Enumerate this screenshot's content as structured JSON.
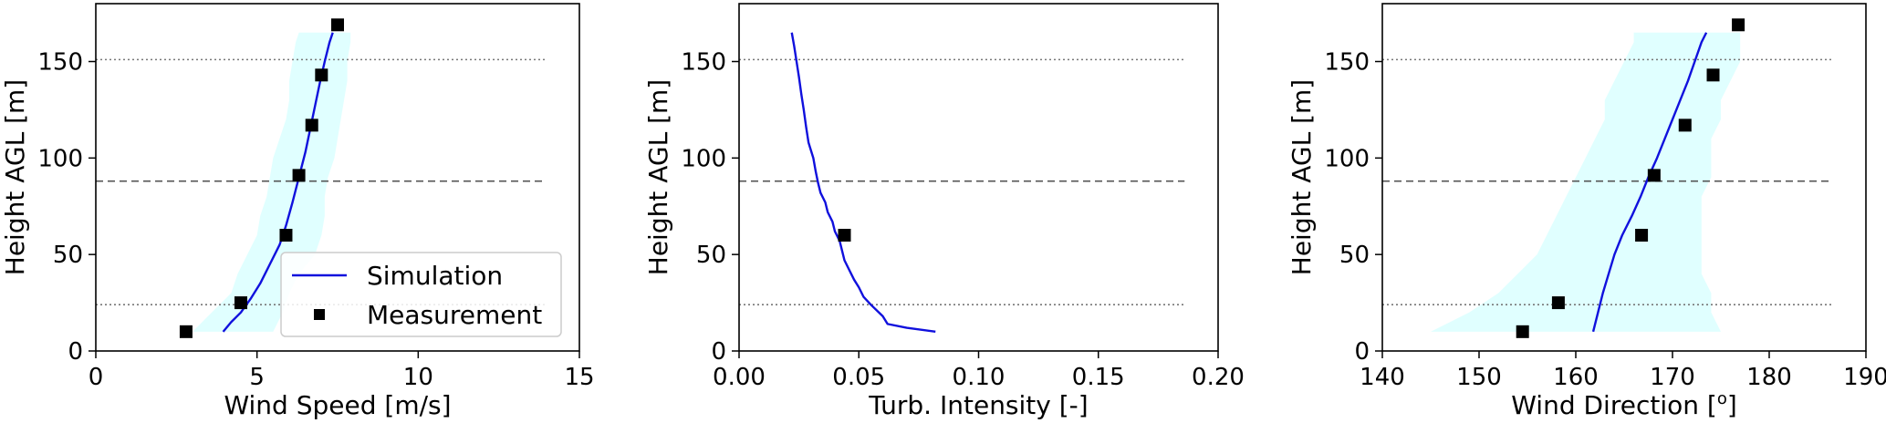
{
  "chart_data": [
    {
      "type": "line",
      "xlabel": "Wind Speed [m/s]",
      "ylabel": "Height AGL [m]",
      "xlim": [
        0,
        15
      ],
      "ylim": [
        0,
        180
      ],
      "xticks": [
        "0",
        "5",
        "10",
        "15"
      ],
      "yticks": [
        "0",
        "50",
        "100",
        "150"
      ],
      "hlines": [
        {
          "y": 151,
          "style": "dotted"
        },
        {
          "y": 88,
          "style": "dashed"
        },
        {
          "y": 24,
          "style": "dotted"
        }
      ],
      "band": {
        "color": "#e0ffff",
        "y": [
          10,
          20,
          30,
          40,
          50,
          60,
          70,
          80,
          90,
          100,
          110,
          120,
          130,
          140,
          150,
          160,
          165
        ],
        "lower": [
          3.0,
          3.6,
          4.2,
          4.4,
          4.7,
          5.0,
          5.1,
          5.3,
          5.4,
          5.5,
          5.7,
          5.9,
          6.0,
          6.0,
          6.1,
          6.2,
          6.3
        ],
        "upper": [
          5.5,
          5.8,
          6.0,
          6.3,
          6.8,
          7.0,
          7.1,
          7.1,
          7.2,
          7.4,
          7.5,
          7.6,
          7.7,
          7.8,
          7.8,
          7.9,
          7.9
        ]
      },
      "series": [
        {
          "name": "Simulation",
          "color": "#1010dd",
          "kind": "line",
          "x": [
            3.95,
            4.2,
            4.5,
            4.8,
            5.1,
            5.4,
            5.7,
            5.9,
            6.1,
            6.3,
            6.5,
            6.65,
            6.8,
            6.95,
            7.1,
            7.25,
            7.35
          ],
          "y": [
            10,
            15,
            20,
            27,
            35,
            45,
            55,
            65,
            77,
            90,
            103,
            115,
            127,
            139,
            150,
            160,
            165
          ]
        },
        {
          "name": "Measurement",
          "color": "#000000",
          "kind": "marker",
          "x": [
            2.8,
            4.5,
            5.9,
            6.3,
            6.7,
            7.0,
            7.5
          ],
          "y": [
            10,
            25,
            60,
            91,
            117,
            143,
            169
          ]
        }
      ],
      "legend": {
        "placement": "lower-right",
        "entries": [
          "Simulation",
          "Measurement"
        ]
      }
    },
    {
      "type": "line",
      "xlabel": "Turb. Intensity [-]",
      "ylabel": "Height AGL [m]",
      "xlim": [
        0,
        0.2
      ],
      "ylim": [
        0,
        180
      ],
      "xticks": [
        "0.00",
        "0.05",
        "0.10",
        "0.15",
        "0.20"
      ],
      "yticks": [
        "0",
        "50",
        "100",
        "150"
      ],
      "hlines": [
        {
          "y": 151,
          "style": "dotted"
        },
        {
          "y": 88,
          "style": "dashed"
        },
        {
          "y": 24,
          "style": "dotted"
        }
      ],
      "series": [
        {
          "name": "Simulation",
          "color": "#1010dd",
          "kind": "line",
          "x": [
            0.082,
            0.07,
            0.062,
            0.06,
            0.055,
            0.052,
            0.05,
            0.048,
            0.046,
            0.044,
            0.043,
            0.042,
            0.04,
            0.039,
            0.037,
            0.036,
            0.034,
            0.033,
            0.032,
            0.031,
            0.029,
            0.028,
            0.027,
            0.026,
            0.025,
            0.024,
            0.023,
            0.022
          ],
          "y": [
            10,
            12,
            14,
            18,
            24,
            28,
            33,
            37,
            42,
            47,
            52,
            57,
            62,
            67,
            72,
            77,
            82,
            87,
            93,
            100,
            108,
            116,
            125,
            133,
            142,
            150,
            158,
            165
          ]
        },
        {
          "name": "Measurement",
          "color": "#000000",
          "kind": "marker",
          "x": [
            0.044
          ],
          "y": [
            60
          ]
        }
      ]
    },
    {
      "type": "line",
      "xlabel": "Wind Direction [",
      "xlabel_sup": "o",
      "xlabel_end": "]",
      "ylabel": "Height AGL [m]",
      "xlim": [
        140,
        190
      ],
      "ylim": [
        0,
        180
      ],
      "xticks": [
        "140",
        "150",
        "160",
        "170",
        "180",
        "190"
      ],
      "yticks": [
        "0",
        "50",
        "100",
        "150"
      ],
      "hlines": [
        {
          "y": 151,
          "style": "dotted"
        },
        {
          "y": 88,
          "style": "dashed"
        },
        {
          "y": 24,
          "style": "dotted"
        }
      ],
      "band": {
        "color": "#e0ffff",
        "y": [
          10,
          20,
          30,
          40,
          50,
          60,
          70,
          80,
          90,
          100,
          110,
          120,
          130,
          140,
          150,
          160,
          165
        ],
        "lower": [
          145,
          149,
          152,
          154,
          156,
          157,
          158,
          159,
          160,
          161,
          162,
          163,
          163,
          164,
          165,
          166,
          166
        ],
        "upper": [
          175,
          174,
          174,
          173,
          173,
          173,
          173,
          173,
          174,
          174,
          174,
          175,
          175,
          176,
          177,
          177,
          177
        ]
      },
      "series": [
        {
          "name": "Simulation",
          "color": "#1010dd",
          "kind": "line",
          "x": [
            161.8,
            162.3,
            162.8,
            163.4,
            164.0,
            164.8,
            165.8,
            166.7,
            167.5,
            168.4,
            169.2,
            170.0,
            170.8,
            171.6,
            172.3,
            173.0,
            173.5
          ],
          "y": [
            10,
            20,
            30,
            40,
            50,
            60,
            70,
            80,
            90,
            100,
            110,
            120,
            130,
            140,
            150,
            160,
            165
          ]
        },
        {
          "name": "Measurement",
          "color": "#000000",
          "kind": "marker",
          "x": [
            154.5,
            158.2,
            166.8,
            168.1,
            171.3,
            174.2,
            176.8
          ],
          "y": [
            10,
            25,
            60,
            91,
            117,
            143,
            169
          ]
        }
      ]
    }
  ]
}
